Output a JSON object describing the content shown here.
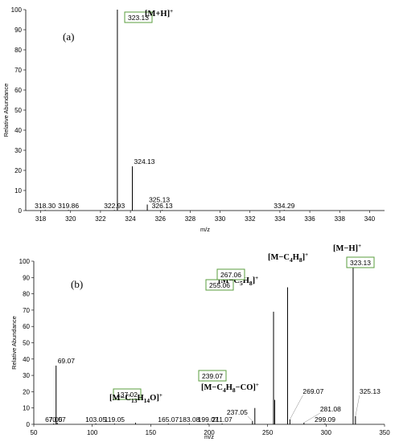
{
  "chart_data": [
    {
      "type": "bar",
      "panel_label": "(a)",
      "xlabel": "m/z",
      "ylabel": "Relative Abundance",
      "xlim": [
        317,
        341
      ],
      "ylim": [
        0,
        100
      ],
      "xticks": [
        318,
        320,
        322,
        324,
        326,
        328,
        330,
        332,
        334,
        336,
        338,
        340
      ],
      "yticks": [
        0,
        10,
        20,
        30,
        40,
        50,
        60,
        70,
        80,
        90,
        100
      ],
      "peaks": [
        {
          "mz": 318.3,
          "intensity": 0.3,
          "label": "318.30"
        },
        {
          "mz": 319.86,
          "intensity": 0.3,
          "label": "319.86"
        },
        {
          "mz": 322.93,
          "intensity": 0.3,
          "label": "322.93"
        },
        {
          "mz": 323.13,
          "intensity": 100,
          "label": "323.13",
          "boxed": true,
          "ion": "[M+H]+"
        },
        {
          "mz": 324.13,
          "intensity": 22,
          "label": "324.13"
        },
        {
          "mz": 325.13,
          "intensity": 3,
          "label": "325.13"
        },
        {
          "mz": 326.13,
          "intensity": 0.3,
          "label": "326.13"
        },
        {
          "mz": 334.29,
          "intensity": 0.3,
          "label": "334.29"
        }
      ]
    },
    {
      "type": "bar",
      "panel_label": "(b)",
      "xlabel": "m/z",
      "ylabel": "Relative Abundance",
      "xlim": [
        50,
        350
      ],
      "ylim": [
        0,
        100
      ],
      "xticks": [
        50,
        100,
        150,
        200,
        250,
        300,
        350
      ],
      "yticks": [
        0,
        10,
        20,
        30,
        40,
        50,
        60,
        70,
        80,
        90,
        100
      ],
      "peaks": [
        {
          "mz": 67.05,
          "intensity": 0.5,
          "label": "67.05"
        },
        {
          "mz": 69.07,
          "intensity": 36,
          "label": "69.07"
        },
        {
          "mz": 70.07,
          "intensity": 1,
          "label": "70.07"
        },
        {
          "mz": 103.05,
          "intensity": 0.5,
          "label": "103.05"
        },
        {
          "mz": 119.05,
          "intensity": 0.5,
          "label": "119.05"
        },
        {
          "mz": 137.02,
          "intensity": 1,
          "label": "137.02",
          "boxed": true,
          "ion": "[M−C13H14O]+"
        },
        {
          "mz": 165.07,
          "intensity": 0.5,
          "label": "165.07"
        },
        {
          "mz": 183.08,
          "intensity": 0.5,
          "label": "183.08"
        },
        {
          "mz": 199.07,
          "intensity": 0.5,
          "label": "199.07"
        },
        {
          "mz": 211.07,
          "intensity": 0.5,
          "label": "211.07"
        },
        {
          "mz": 237.05,
          "intensity": 2,
          "label": "237.05"
        },
        {
          "mz": 239.07,
          "intensity": 10,
          "label": "239.07",
          "boxed": true,
          "ion": "[M−C4H8−CO]+"
        },
        {
          "mz": 255.06,
          "intensity": 69,
          "label": "255.06",
          "boxed": true,
          "ion": "[M−C5H8]+"
        },
        {
          "mz": 256.06,
          "intensity": 15,
          "label": ""
        },
        {
          "mz": 267.06,
          "intensity": 84,
          "label": "267.06",
          "boxed": true,
          "ion": "[M−C4H8]+"
        },
        {
          "mz": 269.07,
          "intensity": 3,
          "label": "269.07"
        },
        {
          "mz": 281.08,
          "intensity": 1,
          "label": "281.08"
        },
        {
          "mz": 299.09,
          "intensity": 0.5,
          "label": "299.09"
        },
        {
          "mz": 323.13,
          "intensity": 100,
          "label": "323.13",
          "boxed": true,
          "ion": "[M−H]+"
        },
        {
          "mz": 325.13,
          "intensity": 5,
          "label": "325.13"
        }
      ]
    }
  ]
}
